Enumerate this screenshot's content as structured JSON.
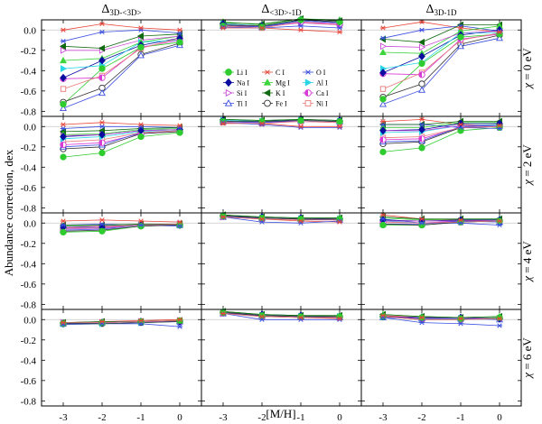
{
  "chart_data": {
    "type": "line",
    "layout": "grid",
    "ylabel": "Abundance correction, dex",
    "xlabel": "[M/H]",
    "x": [
      -3,
      -2,
      -1,
      0
    ],
    "xticks": [
      "-3",
      "-2",
      "-1",
      "0"
    ],
    "ylim": [
      -0.85,
      0.1
    ],
    "yticks": [
      "0.0",
      "-0.2",
      "-0.4",
      "-0.6",
      "-0.8"
    ],
    "ytick_values": [
      0.0,
      -0.2,
      -0.4,
      -0.6,
      -0.8
    ],
    "columns": [
      {
        "base": "Δ",
        "sub": "3D-<3D>"
      },
      {
        "base": "Δ",
        "sub": "<3D>-1D"
      },
      {
        "base": "Δ",
        "sub": "3D-1D"
      }
    ],
    "rows": [
      {
        "symbol": "χ",
        "value": " = 0 eV"
      },
      {
        "symbol": "χ",
        "value": " = 2 eV"
      },
      {
        "symbol": "χ",
        "value": " = 4 eV"
      },
      {
        "symbol": "χ",
        "value": " = 6 eV"
      }
    ],
    "legend_position": "inside row 1 column 2",
    "series": [
      {
        "name": "Li I",
        "color": "#2ecc2e",
        "marker": "filled-circle"
      },
      {
        "name": "C I",
        "color": "#e8473a",
        "marker": "asterisk"
      },
      {
        "name": "O I",
        "color": "#3b4fe0",
        "marker": "asterisk"
      },
      {
        "name": "Na I",
        "color": "#0c0ca0",
        "marker": "filled-diamond"
      },
      {
        "name": "Mg I",
        "color": "#3ed43e",
        "marker": "filled-triangle-up"
      },
      {
        "name": "Al I",
        "color": "#2ad6e6",
        "marker": "filled-triangle-right"
      },
      {
        "name": "Si I",
        "color": "#c94ad6",
        "marker": "open-triangle-right"
      },
      {
        "name": "K I",
        "color": "#106b10",
        "marker": "filled-triangle-left"
      },
      {
        "name": "Ca I",
        "color": "#d83ad6",
        "marker": "half-circle"
      },
      {
        "name": "Ti I",
        "color": "#3b4fe0",
        "marker": "open-triangle-up"
      },
      {
        "name": "Fe I",
        "color": "#333333",
        "marker": "open-circle"
      },
      {
        "name": "Ni I",
        "color": "#e87a7a",
        "marker": "open-square"
      }
    ],
    "panels": [
      [
        {
          "Li I": [
            -0.73,
            -0.38,
            -0.17,
            -0.12
          ],
          "C I": [
            0.0,
            0.06,
            0.02,
            0.0
          ],
          "O I": [
            -0.11,
            -0.02,
            0.0,
            -0.03
          ],
          "Na I": [
            -0.47,
            -0.3,
            -0.15,
            -0.08
          ],
          "Mg I": [
            -0.3,
            -0.28,
            -0.12,
            -0.06
          ],
          "Al I": [
            -0.38,
            -0.35,
            -0.12,
            -0.1
          ],
          "Si I": [
            -0.2,
            -0.2,
            -0.1,
            -0.06
          ],
          "K I": [
            -0.16,
            -0.18,
            -0.06,
            -0.04
          ],
          "Ca I": [
            -0.48,
            -0.47,
            -0.17,
            -0.1
          ],
          "Ti I": [
            -0.77,
            -0.62,
            -0.25,
            -0.15
          ],
          "Fe I": [
            -0.71,
            -0.57,
            -0.24,
            -0.13
          ],
          "Ni I": [
            -0.58,
            -0.45,
            -0.18,
            -0.08
          ]
        },
        {
          "Li I": [
            0.04,
            0.03,
            0.1,
            0.08
          ],
          "C I": [
            0.02,
            0.02,
            0.0,
            -0.02
          ],
          "O I": [
            0.03,
            0.02,
            0.04,
            0.02
          ],
          "Na I": [
            0.06,
            0.04,
            0.1,
            0.08
          ],
          "Mg I": [
            0.08,
            0.05,
            0.11,
            0.1
          ],
          "Al I": [
            0.06,
            0.04,
            0.09,
            0.07
          ],
          "Si I": [
            0.05,
            0.03,
            0.07,
            0.05
          ],
          "K I": [
            0.07,
            0.06,
            0.11,
            0.09
          ],
          "Ca I": [
            0.05,
            0.03,
            0.08,
            0.06
          ],
          "Ti I": [
            0.04,
            0.03,
            0.09,
            0.07
          ],
          "Fe I": [
            0.05,
            0.04,
            0.1,
            0.08
          ],
          "Ni I": [
            0.04,
            0.02,
            0.08,
            0.05
          ]
        },
        {
          "Li I": [
            -0.68,
            -0.33,
            -0.07,
            -0.04
          ],
          "C I": [
            0.02,
            0.08,
            0.02,
            -0.02
          ],
          "O I": [
            -0.08,
            0.0,
            0.04,
            -0.01
          ],
          "Na I": [
            -0.42,
            -0.26,
            -0.05,
            0.0
          ],
          "Mg I": [
            -0.22,
            -0.23,
            -0.01,
            0.04
          ],
          "Al I": [
            -0.38,
            -0.32,
            -0.03,
            -0.03
          ],
          "Si I": [
            -0.16,
            -0.17,
            -0.03,
            -0.01
          ],
          "K I": [
            -0.09,
            -0.12,
            0.05,
            0.05
          ],
          "Ca I": [
            -0.43,
            -0.44,
            -0.09,
            -0.04
          ],
          "Ti I": [
            -0.73,
            -0.59,
            -0.16,
            -0.08
          ],
          "Fe I": [
            -0.66,
            -0.53,
            -0.14,
            -0.05
          ],
          "Ni I": [
            -0.58,
            -0.42,
            -0.1,
            -0.03
          ]
        }
      ],
      [
        {
          "Li I": [
            -0.3,
            -0.26,
            -0.1,
            -0.06
          ],
          "C I": [
            0.02,
            0.04,
            0.02,
            0.01
          ],
          "O I": [
            -0.02,
            0.0,
            0.0,
            -0.01
          ],
          "Na I": [
            -0.1,
            -0.08,
            -0.04,
            -0.03
          ],
          "Mg I": [
            -0.08,
            -0.07,
            -0.03,
            -0.02
          ],
          "Al I": [
            -0.12,
            -0.1,
            -0.05,
            -0.03
          ],
          "Si I": [
            -0.09,
            -0.08,
            -0.04,
            -0.03
          ],
          "K I": [
            -0.05,
            -0.04,
            -0.02,
            -0.01
          ],
          "Ca I": [
            -0.18,
            -0.16,
            -0.07,
            -0.05
          ],
          "Ti I": [
            -0.2,
            -0.18,
            -0.06,
            -0.04
          ],
          "Fe I": [
            -0.22,
            -0.2,
            -0.07,
            -0.05
          ],
          "Ni I": [
            -0.15,
            -0.13,
            -0.06,
            -0.04
          ]
        },
        {
          "Li I": [
            0.05,
            0.05,
            0.06,
            0.05
          ],
          "C I": [
            0.03,
            0.03,
            0.0,
            0.0
          ],
          "O I": [
            0.04,
            0.02,
            -0.01,
            -0.01
          ],
          "Na I": [
            0.06,
            0.05,
            0.07,
            0.06
          ],
          "Mg I": [
            0.07,
            0.06,
            0.07,
            0.06
          ],
          "Al I": [
            0.06,
            0.05,
            0.06,
            0.05
          ],
          "Si I": [
            0.05,
            0.04,
            0.05,
            0.04
          ],
          "K I": [
            0.07,
            0.06,
            0.07,
            0.06
          ],
          "Ca I": [
            0.05,
            0.04,
            0.06,
            0.05
          ],
          "Ti I": [
            0.05,
            0.04,
            0.06,
            0.05
          ],
          "Fe I": [
            0.05,
            0.05,
            0.06,
            0.05
          ],
          "Ni I": [
            0.04,
            0.03,
            0.05,
            0.04
          ]
        },
        {
          "Li I": [
            -0.25,
            -0.21,
            -0.04,
            -0.01
          ],
          "C I": [
            0.05,
            0.07,
            0.02,
            0.01
          ],
          "O I": [
            0.02,
            0.02,
            -0.01,
            -0.02
          ],
          "Na I": [
            -0.04,
            -0.03,
            0.03,
            0.03
          ],
          "Mg I": [
            -0.01,
            -0.01,
            0.04,
            0.04
          ],
          "Al I": [
            -0.06,
            -0.05,
            0.01,
            0.02
          ],
          "Si I": [
            -0.04,
            -0.04,
            0.01,
            0.01
          ],
          "K I": [
            0.02,
            0.02,
            0.05,
            0.05
          ],
          "Ca I": [
            -0.13,
            -0.12,
            -0.01,
            0.0
          ],
          "Ti I": [
            -0.15,
            -0.14,
            0.0,
            0.01
          ],
          "Fe I": [
            -0.17,
            -0.15,
            -0.01,
            0.0
          ],
          "Ni I": [
            -0.11,
            -0.1,
            -0.01,
            0.0
          ]
        }
      ],
      [
        {
          "Li I": [
            -0.09,
            -0.08,
            -0.03,
            -0.02
          ],
          "C I": [
            0.02,
            0.03,
            0.02,
            0.01
          ],
          "O I": [
            -0.02,
            -0.01,
            -0.02,
            -0.03
          ],
          "Na I": [
            -0.04,
            -0.04,
            -0.02,
            -0.02
          ],
          "Mg I": [
            -0.03,
            -0.03,
            -0.01,
            -0.01
          ],
          "Al I": [
            -0.05,
            -0.05,
            -0.02,
            -0.02
          ],
          "Si I": [
            -0.04,
            -0.03,
            -0.02,
            -0.01
          ],
          "K I": [
            -0.02,
            -0.02,
            -0.01,
            -0.01
          ],
          "Ca I": [
            -0.06,
            -0.05,
            -0.02,
            -0.02
          ],
          "Ti I": [
            -0.07,
            -0.06,
            -0.02,
            -0.02
          ],
          "Fe I": [
            -0.08,
            -0.07,
            -0.03,
            -0.02
          ],
          "Ni I": [
            -0.05,
            -0.04,
            -0.02,
            -0.01
          ]
        },
        {
          "Li I": [
            0.07,
            0.05,
            0.04,
            0.04
          ],
          "C I": [
            0.06,
            0.04,
            0.02,
            0.01
          ],
          "O I": [
            0.06,
            0.01,
            0.0,
            0.02
          ],
          "Na I": [
            0.07,
            0.06,
            0.05,
            0.04
          ],
          "Mg I": [
            0.08,
            0.06,
            0.05,
            0.05
          ],
          "Al I": [
            0.07,
            0.05,
            0.04,
            0.04
          ],
          "Si I": [
            0.06,
            0.05,
            0.04,
            0.03
          ],
          "K I": [
            0.08,
            0.06,
            0.05,
            0.05
          ],
          "Ca I": [
            0.07,
            0.05,
            0.04,
            0.04
          ],
          "Ti I": [
            0.06,
            0.05,
            0.04,
            0.03
          ],
          "Fe I": [
            0.07,
            0.05,
            0.04,
            0.04
          ],
          "Ni I": [
            0.06,
            0.04,
            0.03,
            0.03
          ]
        },
        {
          "Li I": [
            -0.02,
            -0.02,
            0.01,
            0.02
          ],
          "C I": [
            0.08,
            0.04,
            0.03,
            0.02
          ],
          "O I": [
            0.04,
            0.0,
            0.0,
            -0.02
          ],
          "Na I": [
            0.03,
            0.02,
            0.03,
            0.03
          ],
          "Mg I": [
            0.05,
            0.03,
            0.04,
            0.04
          ],
          "Al I": [
            0.02,
            0.0,
            0.02,
            0.02
          ],
          "Si I": [
            0.02,
            0.02,
            0.02,
            0.02
          ],
          "K I": [
            0.06,
            0.04,
            0.04,
            0.04
          ],
          "Ca I": [
            0.01,
            0.0,
            0.02,
            0.02
          ],
          "Ti I": [
            -0.01,
            -0.01,
            0.02,
            0.01
          ],
          "Fe I": [
            -0.01,
            -0.02,
            0.01,
            0.02
          ],
          "Ni I": [
            0.01,
            0.0,
            0.01,
            0.02
          ]
        }
      ],
      [
        {
          "Li I": [
            -0.04,
            -0.03,
            -0.02,
            -0.01
          ],
          "C I": [
            -0.03,
            -0.02,
            -0.01,
            0.0
          ],
          "O I": [
            -0.05,
            -0.04,
            -0.04,
            -0.07
          ],
          "Na I": [
            -0.04,
            -0.03,
            -0.02,
            -0.02
          ],
          "Mg I": [
            -0.03,
            -0.03,
            -0.02,
            -0.01
          ],
          "Al I": [
            -0.04,
            -0.04,
            -0.03,
            -0.02
          ],
          "Si I": [
            -0.03,
            -0.03,
            -0.02,
            -0.01
          ],
          "K I": [
            -0.03,
            -0.02,
            -0.02,
            -0.01
          ],
          "Ca I": [
            -0.04,
            -0.03,
            -0.02,
            -0.02
          ],
          "Ti I": [
            -0.04,
            -0.03,
            -0.02,
            -0.02
          ],
          "Fe I": [
            -0.04,
            -0.04,
            -0.03,
            -0.02
          ],
          "Ni I": [
            -0.03,
            -0.03,
            -0.02,
            -0.01
          ]
        },
        {
          "Li I": [
            0.07,
            0.04,
            0.03,
            0.03
          ],
          "C I": [
            0.06,
            0.03,
            0.02,
            0.01
          ],
          "O I": [
            0.06,
            0.0,
            0.0,
            0.0
          ],
          "Na I": [
            0.07,
            0.05,
            0.04,
            0.03
          ],
          "Mg I": [
            0.08,
            0.05,
            0.04,
            0.04
          ],
          "Al I": [
            0.07,
            0.04,
            0.03,
            0.03
          ],
          "Si I": [
            0.06,
            0.04,
            0.03,
            0.02
          ],
          "K I": [
            0.08,
            0.05,
            0.04,
            0.04
          ],
          "Ca I": [
            0.07,
            0.04,
            0.03,
            0.03
          ],
          "Ti I": [
            0.06,
            0.04,
            0.03,
            0.02
          ],
          "Fe I": [
            0.07,
            0.04,
            0.03,
            0.03
          ],
          "Ni I": [
            0.06,
            0.03,
            0.02,
            0.02
          ]
        },
        {
          "Li I": [
            0.03,
            0.02,
            0.01,
            0.02
          ],
          "C I": [
            0.04,
            0.02,
            0.01,
            0.01
          ],
          "O I": [
            0.02,
            -0.03,
            -0.04,
            -0.06
          ],
          "Na I": [
            0.03,
            0.02,
            0.02,
            0.01
          ],
          "Mg I": [
            0.05,
            0.03,
            0.02,
            0.03
          ],
          "Al I": [
            0.03,
            0.01,
            0.01,
            0.01
          ],
          "Si I": [
            0.03,
            0.01,
            0.01,
            0.01
          ],
          "K I": [
            0.05,
            0.03,
            0.02,
            0.03
          ],
          "Ca I": [
            0.03,
            0.01,
            0.01,
            0.01
          ],
          "Ti I": [
            0.02,
            0.01,
            0.01,
            0.0
          ],
          "Fe I": [
            0.03,
            0.0,
            0.0,
            0.01
          ],
          "Ni I": [
            0.03,
            0.0,
            0.0,
            0.01
          ]
        }
      ]
    ]
  }
}
